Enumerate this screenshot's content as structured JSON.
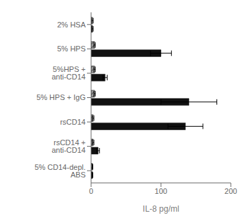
{
  "chart_data": {
    "type": "bar",
    "orientation": "horizontal",
    "categories": [
      "2% HSA",
      "5% HPS",
      "5%HPS + anti-CD14",
      "5% HPS + IgG",
      "rsCD14",
      "rsCD14 + anti-CD14",
      "5% CD14-depl. ABS"
    ],
    "series": [
      {
        "color": "#999999",
        "values": [
          2,
          5,
          5,
          5,
          3,
          3,
          2
        ],
        "errors": [
          1,
          1,
          1,
          1,
          1,
          1,
          0.5
        ]
      },
      {
        "color": "#111111",
        "values": [
          2,
          100,
          20,
          140,
          135,
          10,
          2
        ],
        "errors": [
          1,
          15,
          3,
          40,
          25,
          2,
          0.5
        ]
      }
    ],
    "xlabel": "IL-8 pg/ml",
    "xlim": [
      0,
      200
    ],
    "xticks": [
      0,
      100,
      200
    ],
    "grid": false
  }
}
